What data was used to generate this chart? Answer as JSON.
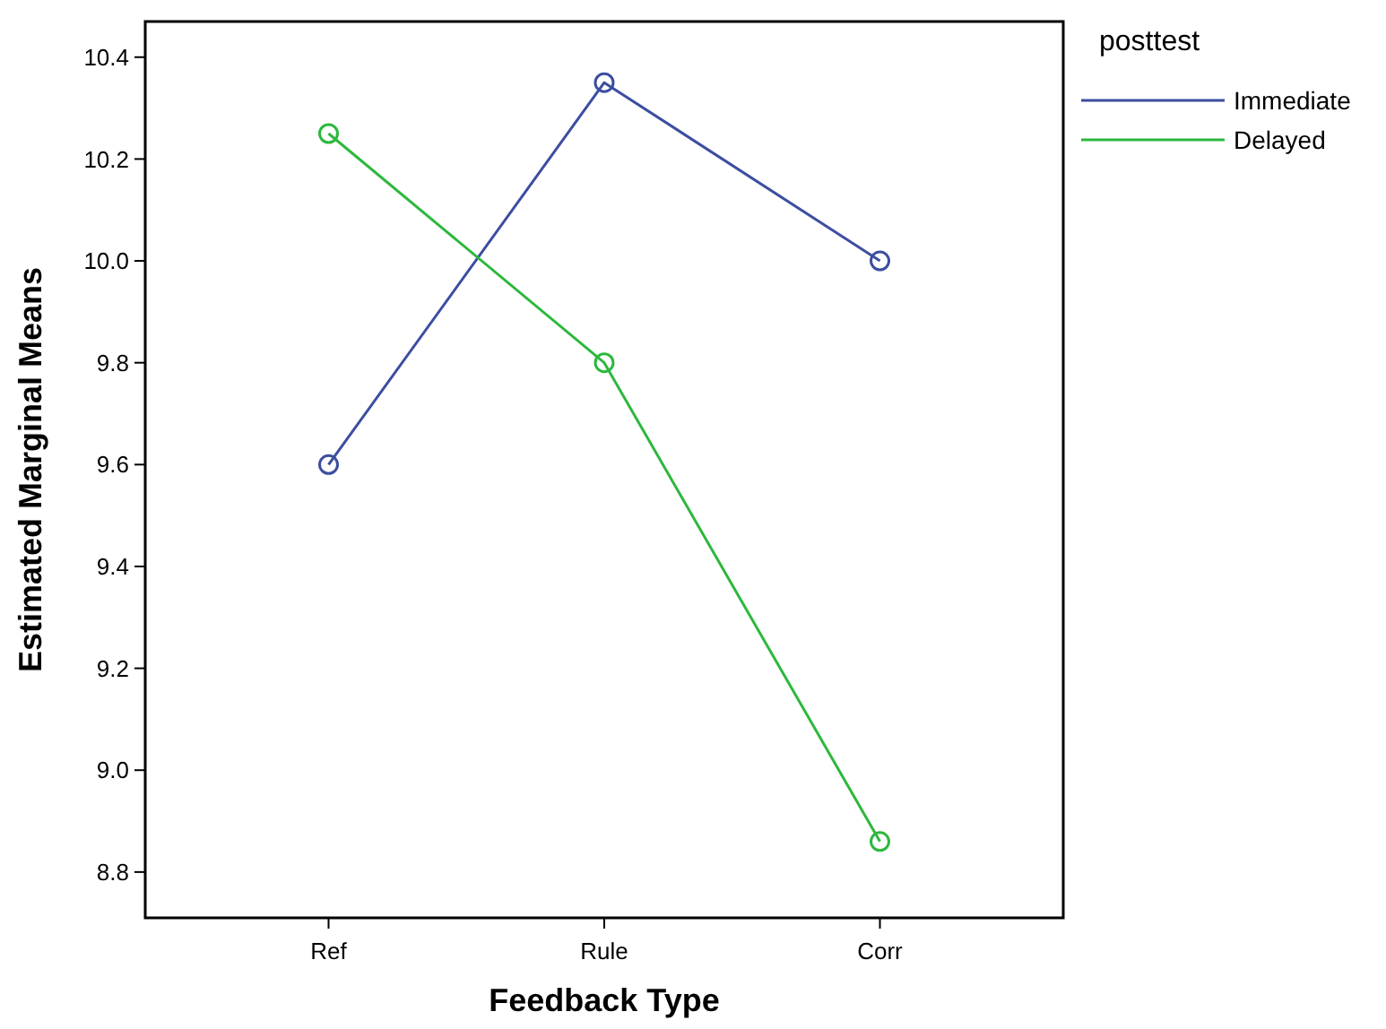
{
  "chart_data": {
    "type": "line",
    "xlabel": "Feedback Type",
    "ylabel": "Estimated Marginal Means",
    "legend_title": "posttest",
    "categories": [
      "Ref",
      "Rule",
      "Corr"
    ],
    "series": [
      {
        "name": "Immediate",
        "color": "#3c4ea0",
        "values": [
          9.6,
          10.35,
          10.0
        ]
      },
      {
        "name": "Delayed",
        "color": "#2db83d",
        "values": [
          10.25,
          9.8,
          8.86
        ]
      }
    ],
    "ylim": [
      8.71,
      10.47
    ],
    "yticks": [
      {
        "value": 8.8,
        "label": "8.8"
      },
      {
        "value": 9.0,
        "label": "9.0"
      },
      {
        "value": 9.2,
        "label": "9.2"
      },
      {
        "value": 9.4,
        "label": "9.4"
      },
      {
        "value": 9.6,
        "label": "9.6"
      },
      {
        "value": 9.8,
        "label": "9.8"
      },
      {
        "value": 10.0,
        "label": "10.0"
      },
      {
        "value": 10.2,
        "label": "10.2"
      },
      {
        "value": 10.4,
        "label": "10.4"
      }
    ],
    "marker": "circle",
    "line_style": "solid",
    "legend": "top right",
    "grid": false
  }
}
